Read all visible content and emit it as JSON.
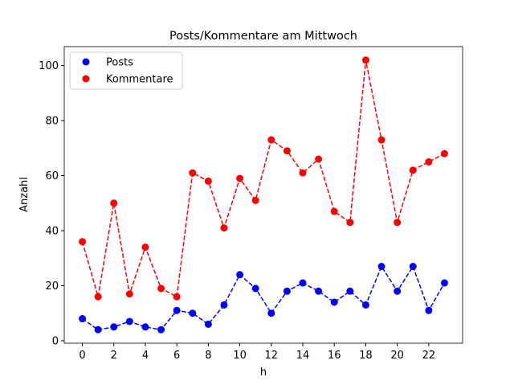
{
  "chart_data": {
    "type": "line",
    "title": "Posts/Kommentare am Mittwoch",
    "xlabel": "h",
    "ylabel": "Anzahl",
    "x": [
      0,
      1,
      2,
      3,
      4,
      5,
      6,
      7,
      8,
      9,
      10,
      11,
      12,
      13,
      14,
      15,
      16,
      17,
      18,
      19,
      20,
      21,
      22,
      23
    ],
    "series": [
      {
        "name": "Posts",
        "color": "#0000ff",
        "values": [
          8,
          4,
          5,
          7,
          5,
          4,
          11,
          10,
          6,
          13,
          24,
          19,
          10,
          18,
          21,
          18,
          14,
          18,
          13,
          27,
          18,
          27,
          11,
          21
        ]
      },
      {
        "name": "Kommentare",
        "color": "#ff0000",
        "values": [
          36,
          16,
          50,
          17,
          34,
          19,
          16,
          61,
          58,
          41,
          59,
          51,
          73,
          69,
          61,
          66,
          47,
          43,
          102,
          73,
          43,
          62,
          65,
          68
        ]
      }
    ],
    "xlim": [
      -1.15,
      24.15
    ],
    "ylim": [
      -0.9,
      106.9
    ],
    "xticks": [
      0,
      2,
      4,
      6,
      8,
      10,
      12,
      14,
      16,
      18,
      20,
      22
    ],
    "yticks": [
      0,
      20,
      40,
      60,
      80,
      100
    ],
    "legend": "upper left"
  }
}
